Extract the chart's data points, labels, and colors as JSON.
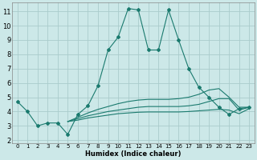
{
  "xlabel": "Humidex (Indice chaleur)",
  "ylabel": "",
  "background_color": "#cce8e8",
  "grid_color": "#aacccc",
  "line_color": "#1a7a6e",
  "xlim": [
    -0.5,
    23.5
  ],
  "ylim": [
    1.8,
    11.6
  ],
  "yticks": [
    2,
    3,
    4,
    5,
    6,
    7,
    8,
    9,
    10,
    11
  ],
  "xticks": [
    0,
    1,
    2,
    3,
    4,
    5,
    6,
    7,
    8,
    9,
    10,
    11,
    12,
    13,
    14,
    15,
    16,
    17,
    18,
    19,
    20,
    21,
    22,
    23
  ],
  "main_series": [
    4.7,
    4.0,
    3.0,
    3.2,
    3.2,
    2.4,
    3.8,
    4.4,
    5.8,
    8.3,
    9.2,
    11.2,
    11.1,
    8.3,
    8.3,
    11.1,
    9.0,
    7.0,
    5.7,
    5.0,
    4.3,
    3.8,
    4.2,
    4.3
  ],
  "flat_lines": [
    {
      "x": [
        5,
        6,
        7,
        8,
        9,
        10,
        11,
        12,
        13,
        14,
        15,
        16,
        17,
        18,
        19,
        20,
        21,
        22,
        23
      ],
      "y": [
        3.3,
        3.6,
        3.9,
        4.15,
        4.35,
        4.55,
        4.7,
        4.8,
        4.85,
        4.85,
        4.85,
        4.9,
        5.0,
        5.2,
        5.5,
        5.6,
        5.0,
        4.3,
        4.3
      ]
    },
    {
      "x": [
        5,
        6,
        7,
        8,
        9,
        10,
        11,
        12,
        13,
        14,
        15,
        16,
        17,
        18,
        19,
        20,
        21,
        22,
        23
      ],
      "y": [
        3.3,
        3.5,
        3.7,
        3.85,
        4.0,
        4.1,
        4.2,
        4.3,
        4.35,
        4.35,
        4.35,
        4.35,
        4.4,
        4.5,
        4.7,
        4.9,
        4.9,
        4.1,
        4.3
      ]
    },
    {
      "x": [
        5,
        6,
        7,
        8,
        9,
        10,
        11,
        12,
        13,
        14,
        15,
        16,
        17,
        18,
        19,
        20,
        21,
        22,
        23
      ],
      "y": [
        3.3,
        3.4,
        3.55,
        3.65,
        3.75,
        3.85,
        3.9,
        3.95,
        3.97,
        3.97,
        3.97,
        3.97,
        4.0,
        4.05,
        4.1,
        4.15,
        4.1,
        3.85,
        4.2
      ]
    }
  ]
}
